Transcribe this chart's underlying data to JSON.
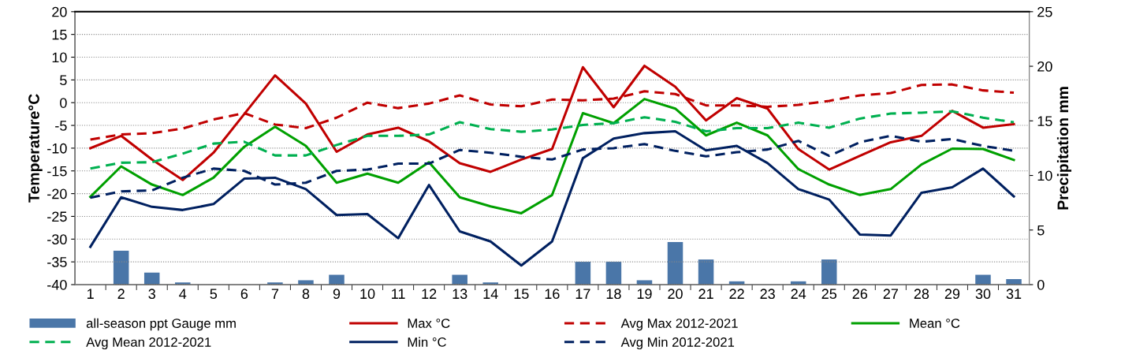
{
  "chart_data": {
    "type": "line",
    "categories": [
      "1",
      "2",
      "3",
      "4",
      "5",
      "6",
      "7",
      "8",
      "9",
      "10",
      "11",
      "12",
      "13",
      "14",
      "15",
      "16",
      "17",
      "18",
      "19",
      "20",
      "21",
      "22",
      "23",
      "24",
      "25",
      "26",
      "27",
      "28",
      "29",
      "30",
      "31"
    ],
    "ylabel": "Temperature°C",
    "y2label": "Precipitation mm",
    "ylim": [
      -40,
      20
    ],
    "yticks": [
      -40,
      -35,
      -30,
      -25,
      -20,
      -15,
      -10,
      -5,
      0,
      5,
      10,
      15,
      20
    ],
    "y2lim": [
      0,
      25
    ],
    "y2ticks": [
      0,
      5,
      10,
      15,
      20,
      25
    ],
    "grid": "y",
    "legend": "bottom",
    "series": [
      {
        "name": "all-season ppt Gauge mm",
        "type": "bar",
        "axis": "y2",
        "color": "#4a76a8",
        "values": [
          0,
          3.1,
          1.1,
          0.2,
          null,
          0,
          0.2,
          0.4,
          0.9,
          null,
          0,
          null,
          0.9,
          0.2,
          0,
          0,
          2.1,
          2.1,
          0.4,
          3.9,
          2.3,
          0.3,
          0,
          0.3,
          2.3,
          0,
          0,
          0,
          null,
          0.9,
          0.5
        ]
      },
      {
        "name": "Max °C",
        "color": "#c00000",
        "line_style": "solid",
        "values": [
          -10,
          -7.3,
          -12.5,
          -17,
          -11,
          -2.5,
          6,
          -0.2,
          -10.8,
          -7,
          -5.5,
          -8.5,
          -13.3,
          -15.2,
          -12.5,
          -10.2,
          7.8,
          -1,
          8.1,
          3.5,
          -3.9,
          1,
          -1.3,
          -10.2,
          -14.7,
          -11.7,
          -8.7,
          -7.3,
          -1.8,
          -5.5,
          -4.7
        ]
      },
      {
        "name": "Avg Max 2012-2021",
        "color": "#c00000",
        "line_style": "dashed",
        "values": [
          -8.1,
          -7,
          -6.7,
          -5.7,
          -3.7,
          -2.3,
          -4.8,
          -5.6,
          -3.3,
          0,
          -1.2,
          -0.2,
          1.6,
          -0.4,
          -0.8,
          0.7,
          0.5,
          0.9,
          2.5,
          1.9,
          -0.6,
          -0.6,
          -0.9,
          -0.5,
          0.4,
          1.6,
          2.1,
          3.9,
          4,
          2.7,
          2.2
        ]
      },
      {
        "name": "Mean °C",
        "color": "#00a000",
        "line_style": "solid",
        "values": [
          -20.7,
          -14,
          -18,
          -20.3,
          -16.5,
          -9.7,
          -5.3,
          -9.5,
          -17.6,
          -15.6,
          -17.6,
          -13.1,
          -20.8,
          -22.8,
          -24.3,
          -20.3,
          -2.3,
          -4.5,
          0.8,
          -1.3,
          -7.2,
          -4.4,
          -7.2,
          -14.6,
          -18,
          -20.3,
          -19,
          -13.6,
          -10.1,
          -10.2,
          -12.6
        ]
      },
      {
        "name": "Avg Mean 2012-2021",
        "color": "#00b050",
        "line_style": "dashed",
        "values": [
          -14.5,
          -13.2,
          -13.1,
          -11.2,
          -9,
          -8.6,
          -11.6,
          -11.6,
          -9.3,
          -7.3,
          -7.3,
          -7,
          -4.3,
          -5.8,
          -6.4,
          -5.9,
          -4.9,
          -4.5,
          -3.2,
          -4.2,
          -6.3,
          -5.6,
          -5.6,
          -4.4,
          -5.5,
          -3.5,
          -2.4,
          -2.2,
          -1.9,
          -3.3,
          -4.3
        ]
      },
      {
        "name": "Min °C",
        "color": "#002060",
        "line_style": "solid",
        "values": [
          -31.7,
          -20.8,
          -22.9,
          -23.6,
          -22.3,
          -16.7,
          -16.5,
          -19,
          -24.7,
          -24.5,
          -29.8,
          -18.1,
          -28.3,
          -30.5,
          -35.8,
          -30.5,
          -12.2,
          -7.9,
          -6.7,
          -6.3,
          -10.5,
          -9.5,
          -13.3,
          -19,
          -21.3,
          -29,
          -29.2,
          -19.8,
          -18.6,
          -14.5,
          -20.6
        ]
      },
      {
        "name": "Avg Min 2012-2021",
        "color": "#002060",
        "line_style": "dashed",
        "values": [
          -20.9,
          -19.5,
          -19.3,
          -16.5,
          -14.5,
          -15,
          -18,
          -17.6,
          -15,
          -14.7,
          -13.4,
          -13.4,
          -10.4,
          -11,
          -11.9,
          -12.5,
          -10.3,
          -10,
          -9.1,
          -10.6,
          -11.8,
          -10.9,
          -10.3,
          -8.4,
          -11.7,
          -8.7,
          -7.3,
          -8.6,
          -8,
          -9.5,
          -10.6
        ]
      }
    ]
  }
}
